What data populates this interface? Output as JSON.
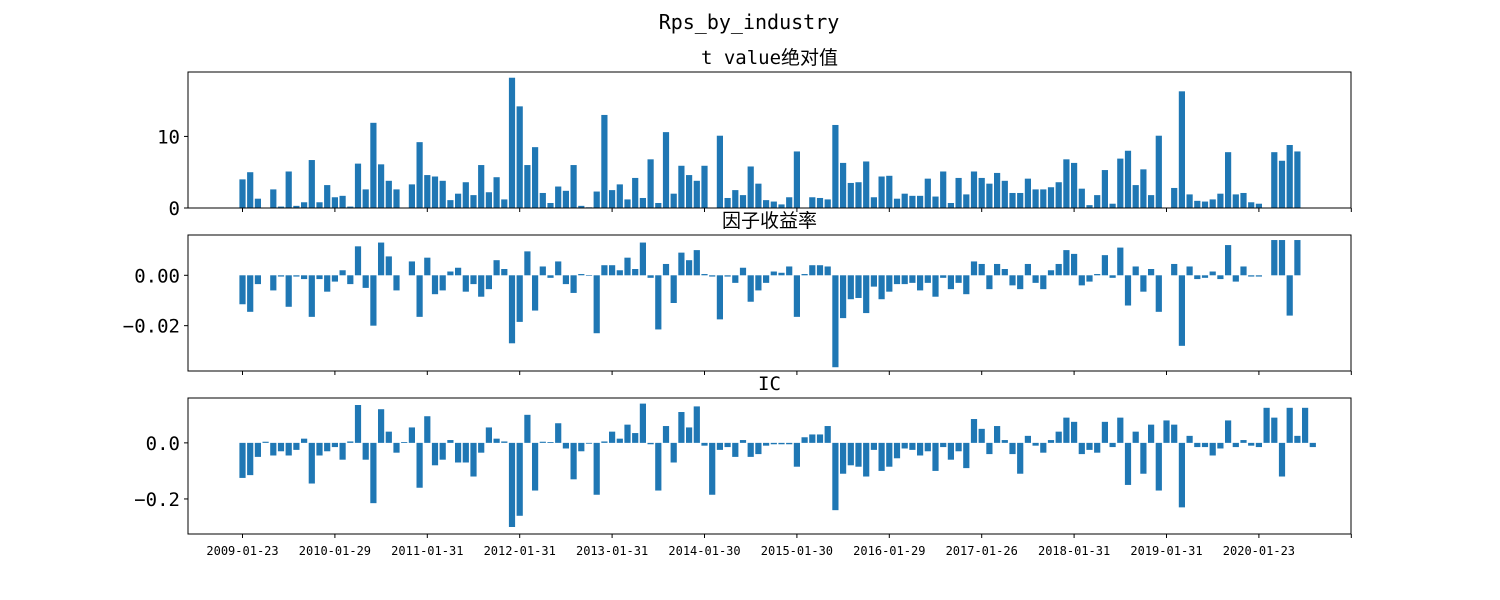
{
  "figure": {
    "title": "Rps_by_industry"
  },
  "colors": {
    "bar": "#1f77b4",
    "axis": "#000000",
    "background": "#ffffff"
  },
  "chart_data": [
    {
      "type": "bar",
      "title": "t value绝对值",
      "xlabel": "",
      "ylabel": "",
      "ylim": [
        0,
        19
      ],
      "yticks": [
        0,
        10
      ],
      "ytick_labels": [
        "0",
        "10"
      ],
      "grid": false,
      "values": [
        4.0,
        5.0,
        1.3,
        0,
        2.6,
        0.2,
        5.1,
        0.3,
        0.8,
        6.7,
        0.8,
        3.2,
        1.5,
        1.7,
        0.2,
        6.2,
        2.6,
        11.9,
        6.1,
        3.8,
        2.6,
        0,
        3.3,
        9.2,
        4.6,
        4.4,
        3.8,
        1.1,
        2.0,
        3.6,
        1.8,
        6.0,
        2.2,
        4.3,
        1.2,
        18.2,
        14.2,
        6.0,
        8.5,
        2.1,
        0.7,
        3.0,
        2.4,
        6.0,
        0.3,
        0.1,
        2.3,
        13.0,
        2.5,
        3.3,
        1.2,
        4.2,
        1.4,
        6.8,
        0.7,
        10.6,
        2.0,
        5.9,
        4.6,
        3.8,
        5.9,
        0,
        10.1,
        1.4,
        2.5,
        1.8,
        5.8,
        3.4,
        1.1,
        0.9,
        0.5,
        1.5,
        7.9,
        0,
        1.5,
        1.4,
        1.2,
        11.6,
        6.3,
        3.5,
        3.6,
        6.5,
        1.5,
        4.4,
        4.5,
        1.3,
        2.0,
        1.7,
        1.7,
        4.1,
        1.6,
        5.1,
        0.7,
        4.2,
        1.9,
        5.1,
        4.2,
        3.4,
        4.9,
        3.8,
        2.1,
        2.1,
        4.1,
        2.6,
        2.6,
        2.9,
        3.6,
        6.8,
        6.3,
        2.7,
        0.4,
        1.8,
        5.3,
        0.6,
        6.9,
        8.0,
        3.2,
        5.4,
        1.8,
        10.1,
        0,
        2.8,
        16.3,
        1.9,
        1.0,
        0.9,
        1.2,
        2.0,
        7.8,
        1.9,
        2.1,
        0.8,
        0.6,
        0,
        7.8,
        6.6,
        8.8,
        7.9
      ]
    },
    {
      "type": "bar",
      "title": "因子收益率",
      "xlabel": "",
      "ylabel": "",
      "ylim": [
        -0.038,
        0.016
      ],
      "yticks": [
        0.0,
        -0.02
      ],
      "ytick_labels": [
        "0.00",
        "−0.02"
      ],
      "grid": false,
      "values": [
        -0.0115,
        -0.0145,
        -0.0035,
        0,
        -0.006,
        -0.0005,
        -0.0125,
        -0.0005,
        -0.0015,
        -0.0165,
        -0.0015,
        -0.0065,
        -0.0025,
        0.002,
        -0.0035,
        0.0115,
        -0.005,
        -0.02,
        0.013,
        0.0075,
        -0.006,
        0,
        0.0055,
        -0.0165,
        0.007,
        -0.0075,
        -0.006,
        0.0015,
        0.003,
        -0.0065,
        -0.0035,
        -0.0085,
        -0.0055,
        0.006,
        0.0025,
        -0.027,
        -0.0185,
        0.0095,
        -0.014,
        0.0035,
        -0.001,
        0.0055,
        -0.0035,
        -0.007,
        0.0005,
        0.0001,
        -0.023,
        0.004,
        0.004,
        0.002,
        0.007,
        0.0025,
        0.013,
        -0.001,
        -0.0215,
        0.0045,
        -0.011,
        0.009,
        0.006,
        0.01,
        0.0005,
        -0.0005,
        -0.0175,
        -0.0005,
        -0.003,
        0.003,
        -0.0105,
        -0.006,
        -0.003,
        0.0015,
        0.001,
        0.0035,
        -0.0165,
        0.0005,
        0.004,
        0.004,
        0.0035,
        -0.0365,
        -0.017,
        -0.0095,
        -0.009,
        -0.015,
        -0.0045,
        -0.0095,
        -0.0065,
        -0.0035,
        -0.0035,
        -0.003,
        -0.006,
        -0.003,
        -0.0085,
        -0.001,
        -0.0055,
        -0.003,
        -0.0075,
        0.0055,
        0.0045,
        -0.0055,
        0.0045,
        0.0025,
        -0.004,
        -0.0055,
        0.0045,
        -0.003,
        -0.0055,
        0.002,
        0.0045,
        0.01,
        0.0085,
        -0.004,
        -0.0025,
        0.0005,
        0.008,
        -0.001,
        0.011,
        -0.012,
        0.0035,
        -0.0065,
        0.0025,
        -0.0145,
        0,
        0.0045,
        -0.028,
        0.0035,
        -0.0015,
        -0.001,
        0.0015,
        -0.0015,
        0.012,
        -0.0025,
        0.0035,
        -0.0005,
        -0.0005,
        0,
        0.014,
        0.014,
        -0.016,
        0.014
      ]
    },
    {
      "type": "bar",
      "title": "IC",
      "xlabel": "",
      "ylabel": "",
      "ylim": [
        -0.325,
        0.16
      ],
      "yticks": [
        0.0,
        -0.2
      ],
      "ytick_labels": [
        "0.0",
        "−0.2"
      ],
      "grid": false,
      "x_tick_labels": [
        "2009-01-23",
        "2010-01-29",
        "2011-01-31",
        "2012-01-31",
        "2013-01-31",
        "2014-01-30",
        "2015-01-30",
        "2016-01-29",
        "2017-01-26",
        "2018-01-31",
        "2019-01-31",
        "2020-01-23"
      ],
      "x_tick_bar_index": [
        0,
        12,
        24,
        36,
        48,
        60,
        72,
        84,
        96,
        108,
        120,
        132
      ],
      "values": [
        -0.125,
        -0.115,
        -0.05,
        0.004,
        -0.045,
        -0.03,
        -0.045,
        -0.025,
        0.015,
        -0.145,
        -0.045,
        -0.03,
        -0.015,
        -0.06,
        0.005,
        0.135,
        -0.06,
        -0.215,
        0.12,
        0.04,
        -0.035,
        0.003,
        0.055,
        -0.16,
        0.095,
        -0.08,
        -0.06,
        0.01,
        -0.07,
        -0.07,
        -0.12,
        -0.035,
        0.055,
        0.015,
        0.005,
        -0.3,
        -0.26,
        0.1,
        -0.17,
        0.004,
        0.003,
        0.07,
        -0.02,
        -0.13,
        -0.03,
        -0.003,
        -0.185,
        0.005,
        0.04,
        0.015,
        0.065,
        0.035,
        0.14,
        -0.005,
        -0.17,
        0.06,
        -0.07,
        0.11,
        0.055,
        0.13,
        -0.01,
        -0.185,
        -0.025,
        -0.015,
        -0.05,
        0.01,
        -0.05,
        -0.04,
        -0.01,
        -0.005,
        -0.005,
        -0.005,
        -0.085,
        0.02,
        0.03,
        0.03,
        0.06,
        -0.24,
        -0.11,
        -0.08,
        -0.085,
        -0.12,
        -0.025,
        -0.1,
        -0.085,
        -0.055,
        -0.02,
        -0.025,
        -0.045,
        -0.03,
        -0.1,
        -0.015,
        -0.06,
        -0.03,
        -0.09,
        0.085,
        0.05,
        -0.04,
        0.06,
        0.01,
        -0.04,
        -0.11,
        0.025,
        -0.01,
        -0.035,
        0.01,
        0.04,
        0.09,
        0.075,
        -0.04,
        -0.025,
        -0.035,
        0.075,
        -0.015,
        0.09,
        -0.15,
        0.04,
        -0.11,
        0.065,
        -0.17,
        0.08,
        0.065,
        -0.23,
        0.025,
        -0.015,
        -0.015,
        -0.045,
        -0.02,
        0.08,
        -0.015,
        0.01,
        -0.01,
        -0.015,
        0.125,
        0.09,
        -0.12,
        0.125,
        0.025,
        0.125,
        -0.015
      ]
    }
  ]
}
